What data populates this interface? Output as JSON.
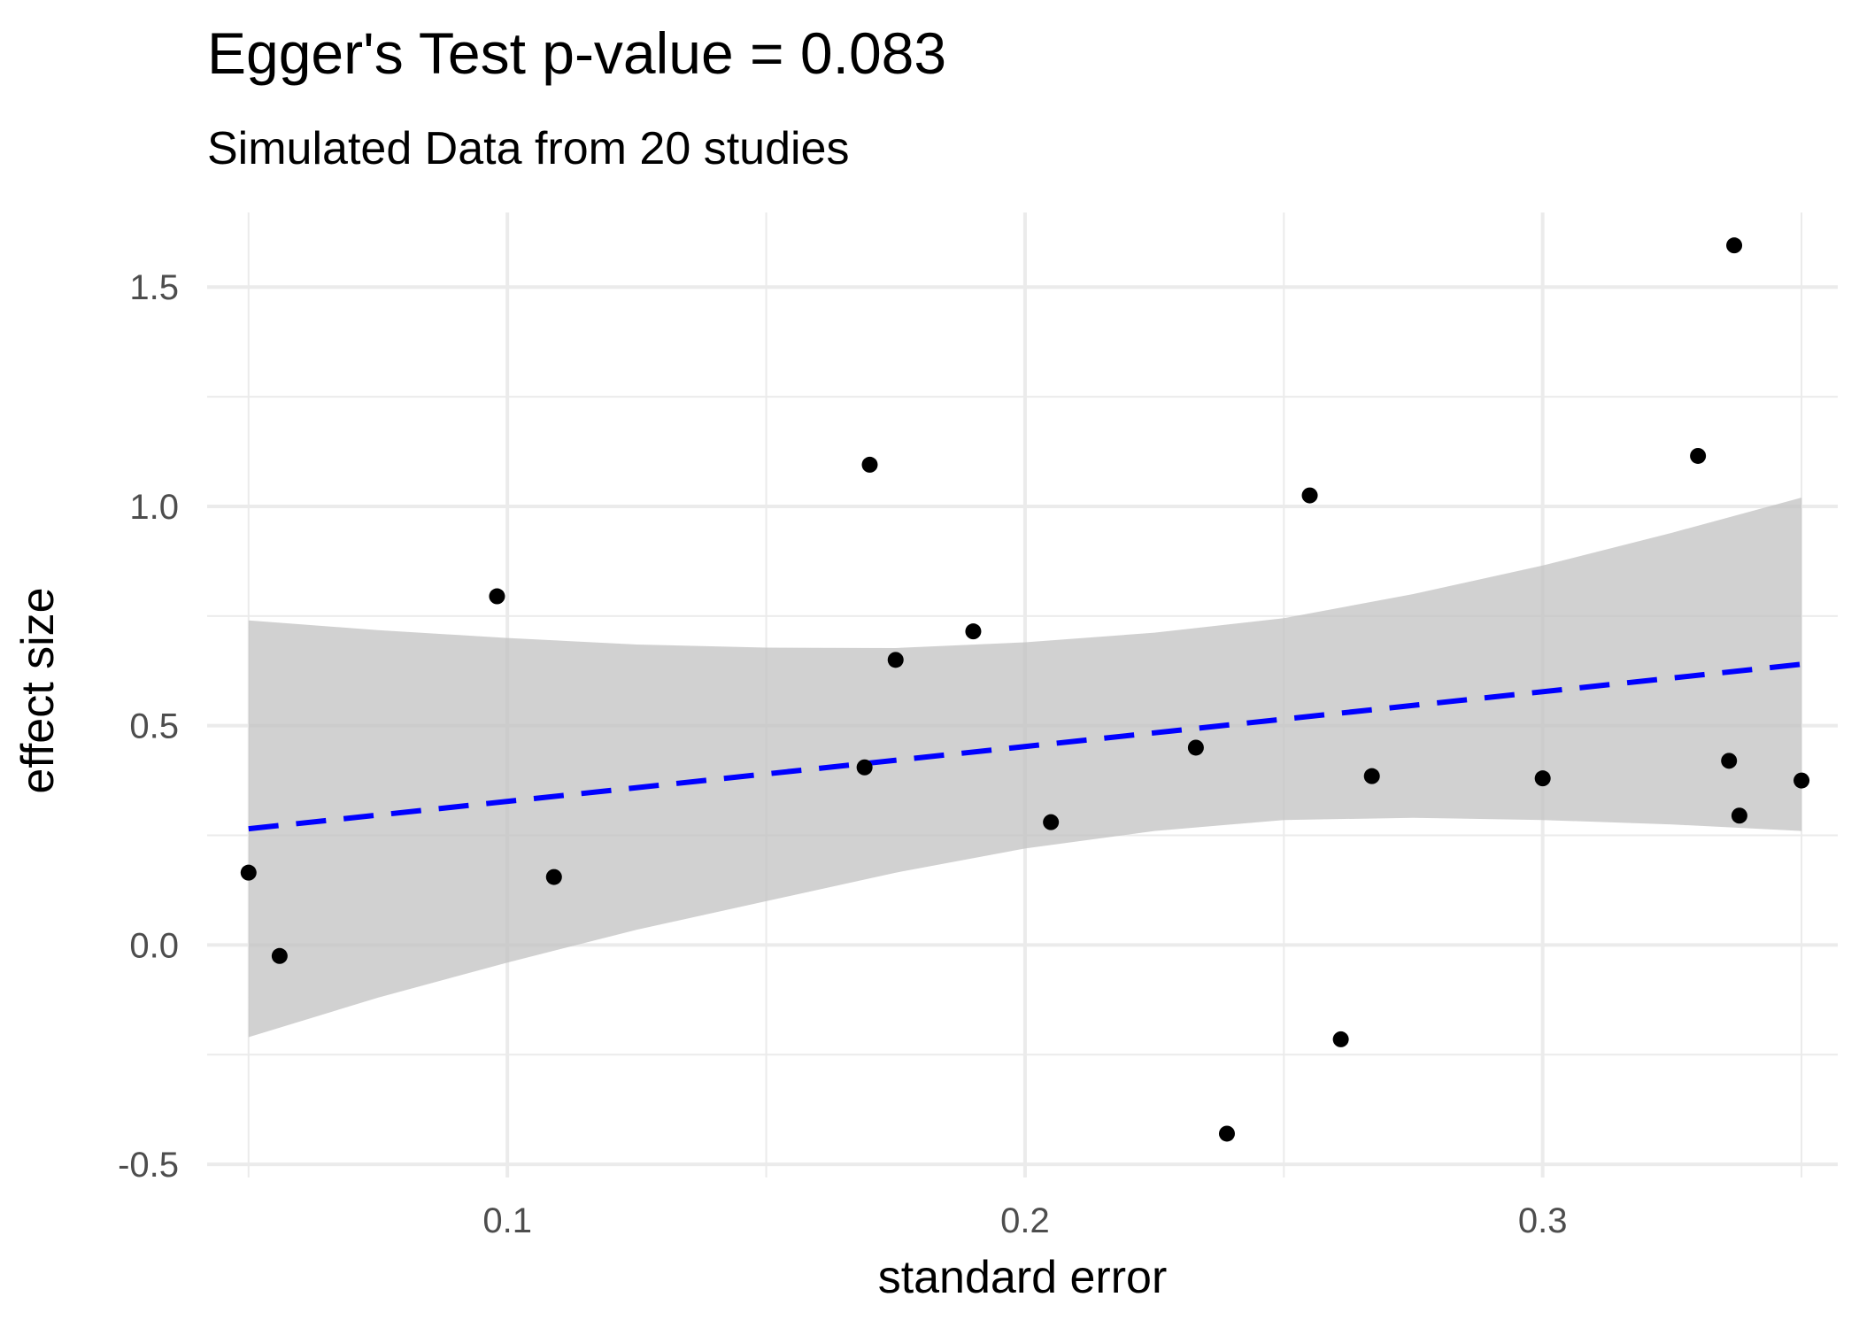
{
  "chart_data": {
    "type": "scatter",
    "title": "Egger's Test p-value = 0.083",
    "subtitle": "Simulated Data from 20 studies",
    "xlabel": "standard error",
    "ylabel": "effect size",
    "xlim": [
      0.042,
      0.357
    ],
    "ylim": [
      -0.53,
      1.67
    ],
    "x_ticks": [
      0.1,
      0.2,
      0.3
    ],
    "x_tick_labels": [
      "0.1",
      "0.2",
      "0.3"
    ],
    "x_minor": [
      0.05,
      0.15,
      0.25,
      0.35
    ],
    "y_ticks": [
      -0.5,
      0.0,
      0.5,
      1.0,
      1.5
    ],
    "y_tick_labels": [
      "-0.5",
      "0.0",
      "0.5",
      "1.0",
      "1.5"
    ],
    "y_minor": [
      -0.25,
      0.25,
      0.75,
      1.25
    ],
    "grid": true,
    "colors": {
      "points": "#000000",
      "regression_line": "#0000ff",
      "confidence_band": "#bfbfbf",
      "grid": "#ebebeb"
    },
    "points": [
      {
        "x": 0.05,
        "y": 0.165
      },
      {
        "x": 0.056,
        "y": -0.025
      },
      {
        "x": 0.098,
        "y": 0.795
      },
      {
        "x": 0.109,
        "y": 0.155
      },
      {
        "x": 0.169,
        "y": 0.405
      },
      {
        "x": 0.17,
        "y": 1.095
      },
      {
        "x": 0.175,
        "y": 0.65
      },
      {
        "x": 0.19,
        "y": 0.715
      },
      {
        "x": 0.205,
        "y": 0.28
      },
      {
        "x": 0.233,
        "y": 0.45
      },
      {
        "x": 0.239,
        "y": -0.43
      },
      {
        "x": 0.255,
        "y": 1.025
      },
      {
        "x": 0.261,
        "y": -0.215
      },
      {
        "x": 0.267,
        "y": 0.385
      },
      {
        "x": 0.3,
        "y": 0.38
      },
      {
        "x": 0.33,
        "y": 1.115
      },
      {
        "x": 0.336,
        "y": 0.42
      },
      {
        "x": 0.337,
        "y": 1.595
      },
      {
        "x": 0.338,
        "y": 0.295
      },
      {
        "x": 0.35,
        "y": 0.375
      }
    ],
    "regression_line": {
      "style": "dashed",
      "x": [
        0.05,
        0.35
      ],
      "y": [
        0.265,
        0.64
      ]
    },
    "confidence_band": {
      "x": [
        0.05,
        0.075,
        0.1,
        0.125,
        0.15,
        0.175,
        0.2,
        0.225,
        0.25,
        0.275,
        0.3,
        0.325,
        0.35
      ],
      "lower": [
        -0.21,
        -0.12,
        -0.04,
        0.035,
        0.1,
        0.165,
        0.22,
        0.26,
        0.285,
        0.29,
        0.285,
        0.275,
        0.26
      ],
      "upper": [
        0.74,
        0.718,
        0.7,
        0.685,
        0.678,
        0.677,
        0.69,
        0.712,
        0.745,
        0.8,
        0.865,
        0.94,
        1.02
      ]
    }
  }
}
